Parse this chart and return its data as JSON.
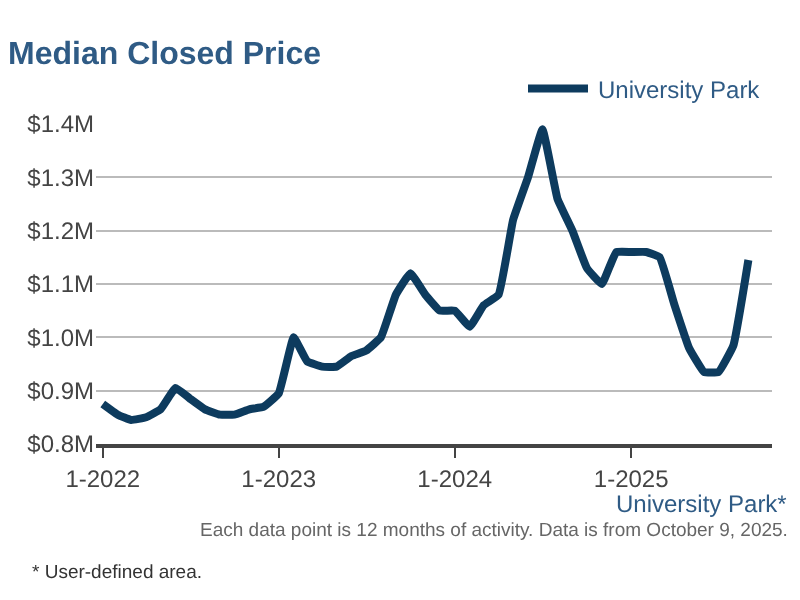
{
  "chart_data": {
    "type": "line",
    "title": "Median Closed Price",
    "x": [
      "2022-01",
      "2022-02",
      "2022-03",
      "2022-04",
      "2022-05",
      "2022-06",
      "2022-07",
      "2022-08",
      "2022-09",
      "2022-10",
      "2022-11",
      "2022-12",
      "2023-01",
      "2023-02",
      "2023-03",
      "2023-04",
      "2023-05",
      "2023-06",
      "2023-07",
      "2023-08",
      "2023-09",
      "2023-10",
      "2023-11",
      "2023-12",
      "2024-01",
      "2024-02",
      "2024-03",
      "2024-04",
      "2024-05",
      "2024-06",
      "2024-07",
      "2024-08",
      "2024-09",
      "2024-10",
      "2024-11",
      "2024-12",
      "2025-01",
      "2025-02",
      "2025-03",
      "2025-04",
      "2025-05",
      "2025-06",
      "2025-07",
      "2025-08",
      "2025-09"
    ],
    "series": [
      {
        "name": "University Park",
        "color": "#0d3b5e",
        "values": [
          0.875,
          0.855,
          0.845,
          0.85,
          0.865,
          0.905,
          0.885,
          0.865,
          0.855,
          0.855,
          0.865,
          0.87,
          0.895,
          1.0,
          0.955,
          0.945,
          0.945,
          0.965,
          0.975,
          1.0,
          1.08,
          1.12,
          1.08,
          1.05,
          1.05,
          1.02,
          1.06,
          1.08,
          1.22,
          1.3,
          1.39,
          1.26,
          1.2,
          1.13,
          1.1,
          1.16,
          1.16,
          1.16,
          1.15,
          1.06,
          0.98,
          0.935,
          0.935,
          0.985,
          1.145
        ]
      }
    ],
    "xlim": [
      "2021-12-18",
      "2025-10-20"
    ],
    "xticks": [
      {
        "value": "2022-01-01",
        "label": "1-2022"
      },
      {
        "value": "2023-01-01",
        "label": "1-2023"
      },
      {
        "value": "2024-01-01",
        "label": "1-2024"
      },
      {
        "value": "2025-01-01",
        "label": "1-2025"
      }
    ],
    "ylim": [
      0.8,
      1.4
    ],
    "yticks": [
      {
        "value": 0.8,
        "label": "$0.8M"
      },
      {
        "value": 0.9,
        "label": "$0.9M"
      },
      {
        "value": 1.0,
        "label": "$1.0M"
      },
      {
        "value": 1.1,
        "label": "$1.1M"
      },
      {
        "value": 1.2,
        "label": "$1.2M"
      },
      {
        "value": 1.3,
        "label": "$1.3M"
      },
      {
        "value": 1.4,
        "label": "$1.4M"
      }
    ],
    "grid": "y",
    "legend": "top right",
    "marker": "none",
    "line_style": "solid",
    "annotations": [
      "University Park*",
      "Each data point is 12 months of activity. Data is from October 9, 2025.",
      "* User-defined area."
    ]
  }
}
